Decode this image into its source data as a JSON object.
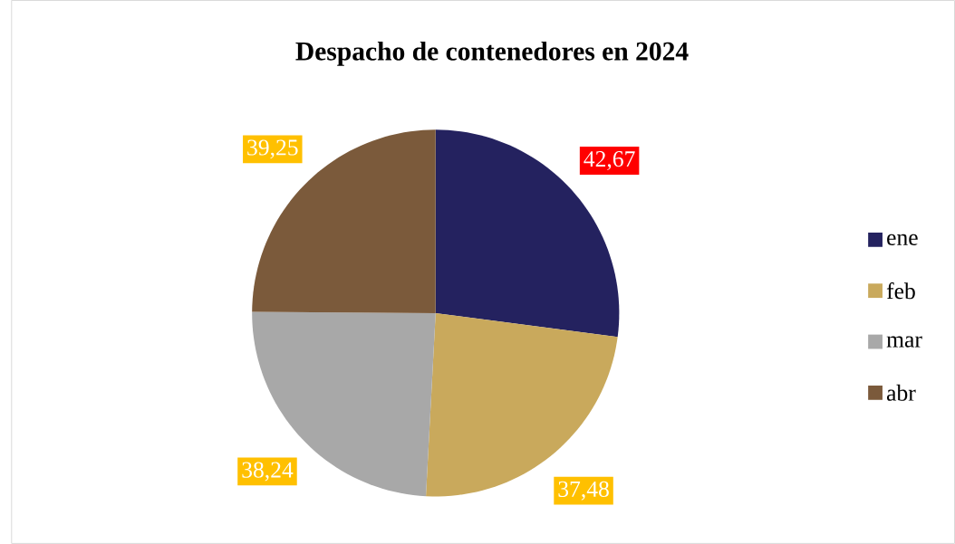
{
  "chart_data": {
    "type": "pie",
    "title": "Despacho de contenedores en 2024",
    "categories": [
      "ene",
      "feb",
      "mar",
      "abr"
    ],
    "values": [
      42.67,
      37.48,
      38.24,
      39.25
    ],
    "value_labels": [
      "42,67",
      "37,48",
      "38,24",
      "39,25"
    ],
    "colors": [
      "#24225f",
      "#c9a95c",
      "#a8a8a8",
      "#7b5a3b"
    ],
    "legend": "right"
  }
}
